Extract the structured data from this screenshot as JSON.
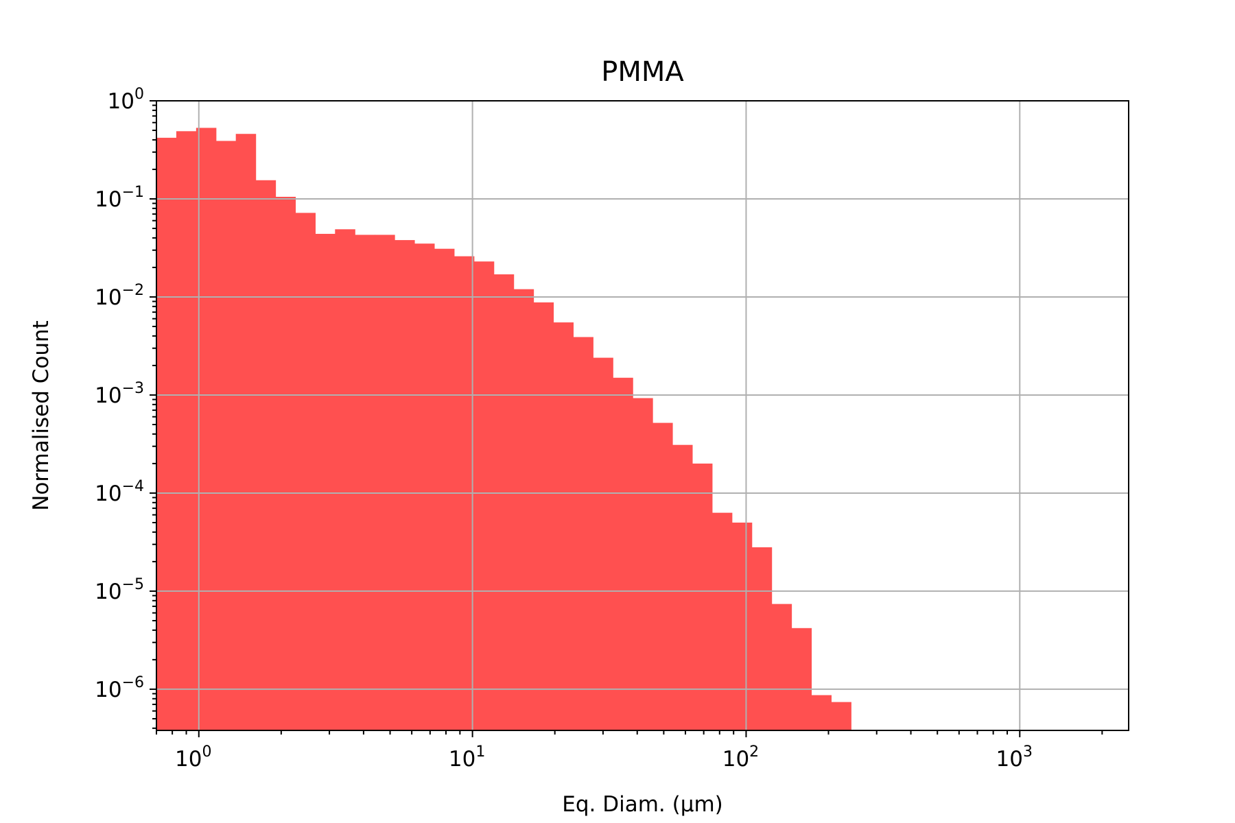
{
  "chart_data": {
    "type": "bar",
    "title": "PMMA",
    "xlabel": "Eq. Diam. (μm)",
    "ylabel": "Normalised Count",
    "xscale": "log",
    "yscale": "log",
    "xlim": [
      0.7,
      2500
    ],
    "ylim": [
      3.8e-07,
      1
    ],
    "grid": true,
    "bar_color": "#ff5050",
    "x_ticks": [
      {
        "base": "10",
        "exp": "0",
        "value": 1
      },
      {
        "base": "10",
        "exp": "1",
        "value": 10
      },
      {
        "base": "10",
        "exp": "2",
        "value": 100
      },
      {
        "base": "10",
        "exp": "3",
        "value": 1000
      }
    ],
    "y_ticks": [
      {
        "base": "10",
        "exp": "0",
        "value": 1
      },
      {
        "base": "10",
        "exp": "−1",
        "value": 0.1
      },
      {
        "base": "10",
        "exp": "−2",
        "value": 0.01
      },
      {
        "base": "10",
        "exp": "−3",
        "value": 0.001
      },
      {
        "base": "10",
        "exp": "−4",
        "value": 0.0001
      },
      {
        "base": "10",
        "exp": "−5",
        "value": 1e-05
      },
      {
        "base": "10",
        "exp": "−6",
        "value": 1e-06
      }
    ],
    "bin_edges": [
      0.7,
      0.8272,
      0.9775,
      1.1552,
      1.3651,
      1.6132,
      1.9064,
      2.2528,
      2.6622,
      3.146,
      3.7178,
      4.3934,
      5.1918,
      6.1354,
      7.2504,
      8.568,
      10.125,
      11.965,
      14.14,
      16.709,
      19.746,
      23.334,
      27.575,
      32.586,
      38.508,
      45.506,
      53.776,
      63.549,
      75.098,
      88.746,
      104.87,
      123.93,
      146.45,
      173.07,
      204.52,
      241.69
    ],
    "values": [
      0.42,
      0.49,
      0.53,
      0.39,
      0.46,
      0.155,
      0.105,
      0.072,
      0.044,
      0.049,
      0.043,
      0.043,
      0.038,
      0.035,
      0.031,
      0.026,
      0.023,
      0.017,
      0.012,
      0.0088,
      0.0055,
      0.0039,
      0.0024,
      0.0015,
      0.00093,
      0.00052,
      0.00031,
      0.0002,
      6.3e-05,
      5e-05,
      2.8e-05,
      7.4e-06,
      4.2e-06,
      8.7e-07,
      7.4e-07
    ]
  }
}
